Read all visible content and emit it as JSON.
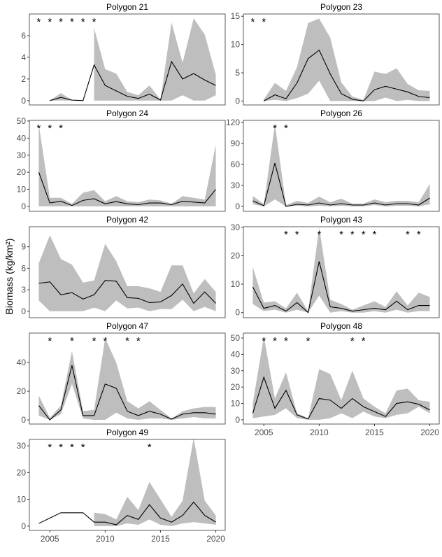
{
  "y_label": "Biomass (kg/km²)",
  "asterisk": "*",
  "x_axis": {
    "xlim": [
      2003.15,
      2020.85
    ],
    "xticks": [
      2005,
      2010,
      2015,
      2020
    ]
  },
  "chart_data": [
    {
      "type": "line",
      "title": "Polygon 21",
      "color": "#000000",
      "band_color": "#bebebe",
      "x": [
        2004,
        2005,
        2006,
        2007,
        2008,
        2009,
        2010,
        2011,
        2012,
        2013,
        2014,
        2015,
        2016,
        2017,
        2018,
        2019,
        2020
      ],
      "values": [
        null,
        0,
        0.3,
        0.05,
        0,
        3.3,
        1.4,
        0.9,
        0.4,
        0.2,
        0.6,
        0.05,
        3.6,
        2.0,
        2.5,
        1.9,
        1.4
      ],
      "upper": [
        null,
        0,
        0.7,
        0.05,
        null,
        6.7,
        2.9,
        2.5,
        0.8,
        0.5,
        1.4,
        0.1,
        7.2,
        3.5,
        7.6,
        6.1,
        2.4
      ],
      "lower": [
        null,
        0,
        0,
        0,
        null,
        0,
        0,
        0,
        0,
        0,
        0,
        0,
        0,
        0.5,
        0,
        0,
        0.5
      ],
      "asterisks": [
        2004,
        2005,
        2006,
        2007,
        2008,
        2009
      ],
      "ylim": [
        -0.4,
        8
      ],
      "yticks": [
        0,
        2,
        4,
        6
      ]
    },
    {
      "type": "line",
      "title": "Polygon 23",
      "color": "#000000",
      "band_color": "#bebebe",
      "x": [
        2004,
        2005,
        2006,
        2007,
        2008,
        2009,
        2010,
        2011,
        2012,
        2013,
        2014,
        2015,
        2016,
        2017,
        2018,
        2019,
        2020
      ],
      "values": [
        null,
        0,
        1.1,
        0.4,
        3.2,
        7.5,
        9,
        4.8,
        1.3,
        0.3,
        0,
        2,
        2.6,
        2.1,
        1.6,
        0.8,
        0.6
      ],
      "upper": [
        null,
        0.3,
        3.2,
        1.8,
        6,
        13.8,
        14.6,
        11.2,
        3.3,
        0.8,
        0.2,
        5.2,
        4.8,
        5.8,
        3,
        1.9,
        1.8
      ],
      "lower": [
        null,
        0,
        0.2,
        0,
        0.5,
        1.3,
        3.6,
        0,
        0,
        0,
        0,
        0,
        0.6,
        0,
        0.2,
        0,
        0
      ],
      "asterisks": [
        2004,
        2005
      ],
      "ylim": [
        -0.7,
        15.4
      ],
      "yticks": [
        0,
        5,
        10,
        15
      ]
    },
    {
      "type": "line",
      "title": "Polygon 24",
      "color": "#000000",
      "band_color": "#bebebe",
      "x": [
        2004,
        2005,
        2006,
        2007,
        2008,
        2009,
        2010,
        2011,
        2012,
        2013,
        2014,
        2015,
        2016,
        2017,
        2018,
        2019,
        2020
      ],
      "values": [
        20,
        2,
        3,
        0.5,
        3.5,
        4.5,
        1.5,
        2.8,
        1.5,
        1,
        2,
        2,
        1,
        3,
        2.5,
        2,
        10
      ],
      "upper": [
        48,
        5,
        5,
        1.5,
        8,
        9.5,
        3,
        6,
        3,
        2.5,
        4,
        3.5,
        1.5,
        6,
        5,
        4,
        36
      ],
      "lower": [
        0,
        0,
        0,
        0,
        0,
        0,
        0,
        0,
        0,
        0,
        0,
        0,
        0,
        0,
        0,
        0,
        0
      ],
      "asterisks": [
        2004,
        2005,
        2006
      ],
      "ylim": [
        -2.9,
        50.4
      ],
      "yticks": [
        0,
        10,
        20,
        30,
        40,
        50
      ]
    },
    {
      "type": "line",
      "title": "Polygon 26",
      "color": "#000000",
      "band_color": "#bebebe",
      "x": [
        2004,
        2005,
        2006,
        2007,
        2008,
        2009,
        2010,
        2011,
        2012,
        2013,
        2014,
        2015,
        2016,
        2017,
        2018,
        2019,
        2020
      ],
      "values": [
        8,
        1,
        62,
        0,
        3,
        2,
        5,
        2,
        4,
        2,
        2,
        5,
        2,
        4,
        4,
        2,
        12
      ],
      "upper": [
        15,
        3,
        118,
        2,
        8,
        5,
        14,
        6,
        11,
        4,
        4,
        10,
        6,
        8,
        8,
        6,
        32
      ],
      "lower": [
        3,
        0,
        10,
        0,
        1,
        0,
        1,
        0,
        1,
        0,
        0,
        2,
        0,
        1,
        1,
        0,
        3
      ],
      "asterisks": [
        2006,
        2007
      ],
      "ylim": [
        -7,
        123
      ],
      "yticks": [
        0,
        30,
        60,
        90,
        120
      ]
    },
    {
      "type": "line",
      "title": "Polygon 42",
      "color": "#000000",
      "band_color": "#bebebe",
      "x": [
        2004,
        2005,
        2006,
        2007,
        2008,
        2009,
        2010,
        2011,
        2012,
        2013,
        2014,
        2015,
        2016,
        2017,
        2018,
        2019,
        2020
      ],
      "values": [
        3.9,
        4.1,
        2.3,
        2.6,
        1.7,
        2.3,
        4.3,
        4.2,
        1.9,
        1.8,
        1.2,
        1.3,
        2.2,
        3.8,
        1.1,
        2.7,
        1.1
      ],
      "upper": [
        6.7,
        10.6,
        7.3,
        6.5,
        4,
        4.3,
        9.4,
        7,
        3.5,
        3.5,
        3.2,
        2.7,
        6.4,
        6.4,
        2.5,
        4.5,
        2.7
      ],
      "lower": [
        1.5,
        0,
        0,
        0,
        0,
        0.5,
        0,
        1.5,
        0.4,
        0.5,
        0,
        0.3,
        0.3,
        1.6,
        0,
        0.6,
        0
      ],
      "asterisks": [],
      "ylim": [
        -0.9,
        11.8
      ],
      "yticks": [
        0,
        3,
        6,
        9
      ]
    },
    {
      "type": "line",
      "title": "Polygon 43",
      "color": "#000000",
      "band_color": "#bebebe",
      "x": [
        2004,
        2005,
        2006,
        2007,
        2008,
        2009,
        2010,
        2011,
        2012,
        2013,
        2014,
        2015,
        2016,
        2017,
        2018,
        2019,
        2020
      ],
      "values": [
        9,
        1.5,
        2.5,
        0.5,
        3.5,
        0,
        18,
        2,
        1.5,
        0.5,
        1,
        1.5,
        1,
        4,
        1,
        2.5,
        2.5
      ],
      "upper": [
        16,
        3.5,
        4,
        1.5,
        7,
        0.5,
        30,
        4.5,
        3,
        1,
        2.5,
        4,
        2,
        7.5,
        2.5,
        7,
        5.5
      ],
      "lower": [
        3,
        0.5,
        1,
        0,
        1,
        0,
        6,
        0,
        0.5,
        0,
        0,
        0.5,
        0,
        1,
        0,
        0.5,
        0.5
      ],
      "asterisks": [
        2007,
        2008,
        2010,
        2012,
        2013,
        2014,
        2015,
        2018,
        2019
      ],
      "ylim": [
        -1.8,
        30.2
      ],
      "yticks": [
        0,
        10,
        20,
        30
      ]
    },
    {
      "type": "line",
      "title": "Polygon 47",
      "color": "#000000",
      "band_color": "#bebebe",
      "x": [
        2004,
        2005,
        2006,
        2007,
        2008,
        2009,
        2010,
        2011,
        2012,
        2013,
        2014,
        2015,
        2016,
        2017,
        2018,
        2019,
        2020
      ],
      "values": [
        10,
        0,
        7,
        38,
        3,
        3,
        25,
        22,
        6,
        3,
        6,
        4,
        0.5,
        4,
        5,
        5,
        4
      ],
      "upper": [
        17,
        1.5,
        10,
        48,
        6,
        7,
        57,
        40,
        13,
        8,
        13,
        7,
        1,
        6,
        8,
        9,
        9
      ],
      "lower": [
        3,
        0,
        4,
        25,
        1,
        0,
        0,
        5,
        1,
        0,
        1,
        1,
        0,
        1,
        2,
        1,
        1
      ],
      "asterisks": [
        2005,
        2007,
        2009,
        2010,
        2012,
        2013
      ],
      "ylim": [
        -2.9,
        60.5
      ],
      "yticks": [
        0,
        20,
        40
      ]
    },
    {
      "type": "line",
      "title": "Polygon 48",
      "color": "#000000",
      "band_color": "#bebebe",
      "x": [
        2004,
        2005,
        2006,
        2007,
        2008,
        2009,
        2010,
        2011,
        2012,
        2013,
        2014,
        2015,
        2016,
        2017,
        2018,
        2019,
        2020
      ],
      "values": [
        4,
        26,
        7,
        18,
        3,
        0.5,
        13,
        12,
        7,
        13,
        8,
        5,
        2,
        10,
        11,
        9.5,
        6
      ],
      "upper": [
        10,
        51,
        13,
        29,
        4,
        1,
        31,
        28,
        12,
        30,
        13,
        8,
        4,
        18,
        19,
        12,
        11
      ],
      "lower": [
        1,
        2,
        3,
        7,
        1,
        0,
        0,
        1,
        4,
        1,
        5,
        2,
        1,
        3,
        4,
        8,
        4
      ],
      "asterisks": [
        2005,
        2006,
        2007,
        2009,
        2013,
        2014
      ],
      "ylim": [
        -2.6,
        53
      ],
      "yticks": [
        0,
        10,
        20,
        30,
        40,
        50
      ]
    },
    {
      "type": "line",
      "title": "Polygon 49",
      "color": "#000000",
      "band_color": "#bebebe",
      "x": [
        2004,
        2005,
        2006,
        2007,
        2008,
        2009,
        2010,
        2011,
        2012,
        2013,
        2014,
        2015,
        2016,
        2017,
        2018,
        2019,
        2020
      ],
      "values": [
        1,
        3,
        5,
        5,
        5,
        1.5,
        1.5,
        0.5,
        4,
        2.5,
        8,
        3,
        1.5,
        4,
        9,
        4,
        1.5
      ],
      "upper": [
        null,
        null,
        null,
        null,
        null,
        5,
        4.5,
        2.5,
        11,
        6,
        16.5,
        10,
        3.5,
        9.5,
        33,
        9.5,
        4
      ],
      "lower": [
        null,
        null,
        null,
        null,
        null,
        0,
        0,
        0,
        1,
        0.5,
        2.5,
        0.5,
        0,
        1,
        1.5,
        1,
        0.5
      ],
      "asterisks": [
        2005,
        2006,
        2007,
        2008,
        2014
      ],
      "ylim": [
        -1.6,
        32.4
      ],
      "yticks": [
        0,
        10,
        20,
        30
      ]
    }
  ]
}
